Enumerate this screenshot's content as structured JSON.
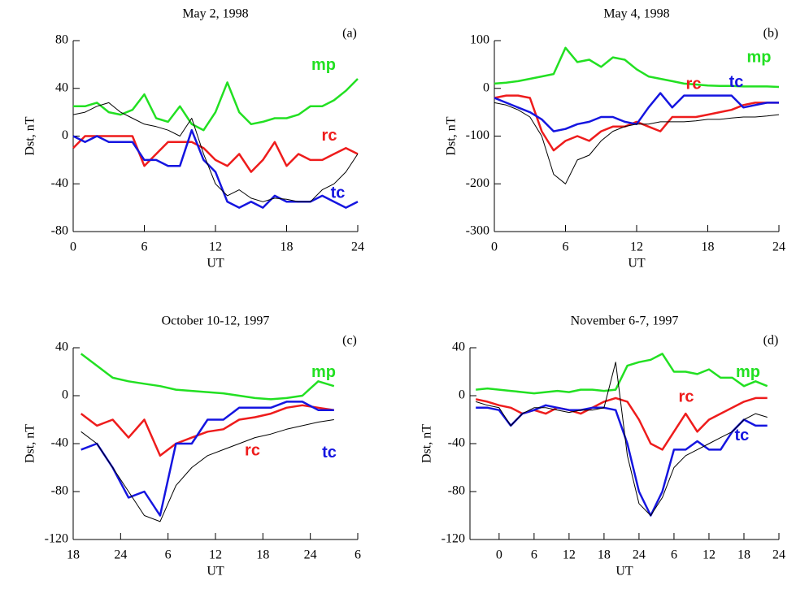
{
  "chart_data": [
    {
      "type": "line",
      "title": "May 2, 1998",
      "panel_label": "(a)",
      "xlabel": "UT",
      "ylabel": "Dst, nT",
      "xlim": [
        0,
        24
      ],
      "xticks": [
        0,
        6,
        12,
        18,
        24
      ],
      "ylim": [
        -80,
        80
      ],
      "yticks": [
        -80,
        -40,
        0,
        40,
        80
      ],
      "x": [
        0,
        1,
        2,
        3,
        4,
        5,
        6,
        7,
        8,
        9,
        10,
        11,
        12,
        13,
        14,
        15,
        16,
        17,
        18,
        19,
        20,
        21,
        22,
        23,
        24
      ],
      "series": [
        {
          "name": "mp",
          "color": "#22e022",
          "values": [
            25,
            25,
            28,
            20,
            18,
            22,
            35,
            15,
            12,
            25,
            10,
            5,
            20,
            45,
            20,
            10,
            12,
            15,
            15,
            18,
            25,
            25,
            30,
            38,
            48
          ]
        },
        {
          "name": "rc",
          "color": "#ee1c1c",
          "values": [
            -10,
            0,
            0,
            0,
            0,
            0,
            -25,
            -15,
            -5,
            -5,
            -5,
            -10,
            -20,
            -25,
            -15,
            -30,
            -20,
            -5,
            -25,
            -15,
            -20,
            -20,
            -15,
            -10,
            -15
          ]
        },
        {
          "name": "tc",
          "color": "#1515e0",
          "values": [
            0,
            -5,
            0,
            -5,
            -5,
            -5,
            -20,
            -20,
            -25,
            -25,
            5,
            -20,
            -30,
            -55,
            -60,
            -55,
            -60,
            -50,
            -55,
            -55,
            -55,
            -50,
            -55,
            -60,
            -55
          ]
        },
        {
          "color": "#000000",
          "values": [
            18,
            20,
            25,
            28,
            20,
            15,
            10,
            8,
            5,
            0,
            15,
            -15,
            -40,
            -50,
            -45,
            -52,
            -55,
            -52,
            -53,
            -55,
            -55,
            -45,
            -40,
            -30,
            -15
          ]
        }
      ]
    },
    {
      "type": "line",
      "title": "May 4, 1998",
      "panel_label": "(b)",
      "xlabel": "UT",
      "ylabel": "Dst, nT",
      "xlim": [
        0,
        24
      ],
      "xticks": [
        0,
        6,
        12,
        18,
        24
      ],
      "ylim": [
        -300,
        100
      ],
      "yticks": [
        -300,
        -200,
        -100,
        0,
        100
      ],
      "x": [
        0,
        1,
        2,
        3,
        4,
        5,
        6,
        7,
        8,
        9,
        10,
        11,
        12,
        13,
        14,
        15,
        16,
        17,
        18,
        19,
        20,
        21,
        22,
        23,
        24
      ],
      "series": [
        {
          "name": "mp",
          "color": "#22e022",
          "values": [
            10,
            12,
            15,
            20,
            25,
            30,
            85,
            55,
            60,
            45,
            65,
            60,
            40,
            25,
            20,
            15,
            10,
            8,
            6,
            5,
            5,
            4,
            4,
            4,
            3
          ]
        },
        {
          "name": "rc",
          "color": "#ee1c1c",
          "values": [
            -20,
            -15,
            -15,
            -20,
            -90,
            -130,
            -110,
            -100,
            -110,
            -90,
            -80,
            -80,
            -70,
            -80,
            -90,
            -60,
            -60,
            -60,
            -55,
            -50,
            -45,
            -35,
            -30,
            -30,
            -30
          ]
        },
        {
          "name": "tc",
          "color": "#1515e0",
          "values": [
            -20,
            -30,
            -40,
            -50,
            -65,
            -90,
            -85,
            -75,
            -70,
            -60,
            -60,
            -70,
            -75,
            -40,
            -10,
            -40,
            -15,
            -15,
            -15,
            -15,
            -15,
            -40,
            -35,
            -30,
            -30
          ]
        },
        {
          "color": "#000000",
          "values": [
            -30,
            -35,
            -45,
            -60,
            -100,
            -180,
            -200,
            -150,
            -140,
            -110,
            -90,
            -80,
            -75,
            -75,
            -70,
            -70,
            -70,
            -68,
            -65,
            -65,
            -62,
            -60,
            -60,
            -58,
            -55
          ]
        }
      ]
    },
    {
      "type": "line",
      "title": "October 10-12, 1997",
      "panel_label": "(c)",
      "xlabel": "UT",
      "ylabel": "Dst, nT",
      "xlim": [
        18,
        54
      ],
      "xticks": [
        18,
        24,
        {
          "value": 30,
          "label": "6"
        },
        {
          "value": 36,
          "label": "12"
        },
        {
          "value": 42,
          "label": "18"
        },
        {
          "value": 48,
          "label": "24"
        },
        {
          "value": 54,
          "label": "6"
        }
      ],
      "ylim": [
        -120,
        40
      ],
      "yticks": [
        -120,
        -80,
        -40,
        0,
        40
      ],
      "x": [
        19,
        21,
        23,
        25,
        27,
        29,
        31,
        33,
        35,
        37,
        39,
        41,
        43,
        45,
        47,
        49,
        51
      ],
      "series": [
        {
          "name": "mp",
          "color": "#22e022",
          "values": [
            35,
            25,
            15,
            12,
            10,
            8,
            5,
            4,
            3,
            2,
            0,
            -2,
            -3,
            -2,
            0,
            12,
            8
          ]
        },
        {
          "name": "rc",
          "color": "#ee1c1c",
          "values": [
            -15,
            -25,
            -20,
            -35,
            -20,
            -50,
            -40,
            -35,
            -30,
            -28,
            -20,
            -18,
            -15,
            -10,
            -8,
            -10,
            -12
          ]
        },
        {
          "name": "tc",
          "color": "#1515e0",
          "values": [
            -45,
            -40,
            -60,
            -85,
            -80,
            -100,
            -40,
            -40,
            -20,
            -20,
            -10,
            -10,
            -10,
            -5,
            -5,
            -12,
            -12
          ]
        },
        {
          "color": "#000000",
          "values": [
            -30,
            -40,
            -60,
            -80,
            -100,
            -105,
            -75,
            -60,
            -50,
            -45,
            -40,
            -35,
            -32,
            -28,
            -25,
            -22,
            -20
          ]
        }
      ]
    },
    {
      "type": "line",
      "title": "November 6-7, 1997",
      "panel_label": "(d)",
      "xlabel": "UT",
      "ylabel": "Dst, nT",
      "xlim": [
        -5,
        48
      ],
      "xticks": [
        0,
        6,
        12,
        18,
        24,
        {
          "value": 30,
          "label": "6"
        },
        {
          "value": 36,
          "label": "12"
        },
        {
          "value": 42,
          "label": "18"
        },
        {
          "value": 48,
          "label": "24"
        }
      ],
      "ylim": [
        -120,
        40
      ],
      "yticks": [
        -120,
        -80,
        -40,
        0,
        40
      ],
      "x": [
        -4,
        -2,
        0,
        2,
        4,
        6,
        8,
        10,
        12,
        14,
        16,
        18,
        20,
        22,
        24,
        26,
        28,
        30,
        32,
        34,
        36,
        38,
        40,
        42,
        44,
        46
      ],
      "series": [
        {
          "name": "mp",
          "color": "#22e022",
          "values": [
            5,
            6,
            5,
            4,
            3,
            2,
            3,
            4,
            3,
            5,
            5,
            4,
            5,
            25,
            28,
            30,
            35,
            20,
            20,
            18,
            22,
            15,
            15,
            8,
            12,
            8
          ]
        },
        {
          "name": "rc",
          "color": "#ee1c1c",
          "values": [
            -3,
            -5,
            -8,
            -10,
            -15,
            -12,
            -15,
            -10,
            -12,
            -15,
            -10,
            -5,
            -2,
            -5,
            -20,
            -40,
            -45,
            -30,
            -15,
            -30,
            -20,
            -15,
            -10,
            -5,
            -2,
            -2
          ]
        },
        {
          "name": "tc",
          "color": "#1515e0",
          "values": [
            -10,
            -10,
            -12,
            -25,
            -15,
            -12,
            -8,
            -10,
            -12,
            -12,
            -10,
            -10,
            -12,
            -40,
            -80,
            -100,
            -80,
            -45,
            -45,
            -38,
            -45,
            -45,
            -30,
            -20,
            -25,
            -25
          ]
        },
        {
          "color": "#000000",
          "values": [
            -5,
            -8,
            -10,
            -25,
            -15,
            -10,
            -10,
            -12,
            -14,
            -12,
            -12,
            -10,
            28,
            -50,
            -90,
            -100,
            -85,
            -60,
            -50,
            -45,
            -40,
            -35,
            -30,
            -20,
            -15,
            -18
          ]
        }
      ]
    }
  ]
}
